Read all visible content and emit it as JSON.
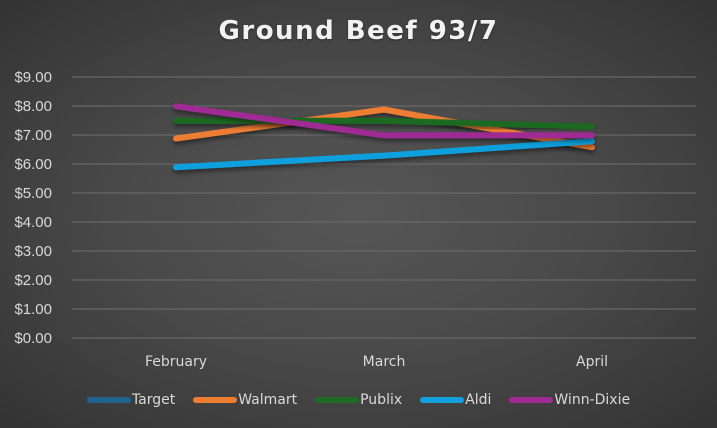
{
  "chart_data": {
    "type": "line",
    "title": "Ground Beef 93/7",
    "xlabel": "",
    "ylabel": "",
    "categories": [
      "February",
      "March",
      "April"
    ],
    "ylim": [
      0,
      9
    ],
    "yticks": [
      "$0.00",
      "$1.00",
      "$2.00",
      "$3.00",
      "$4.00",
      "$5.00",
      "$6.00",
      "$7.00",
      "$8.00",
      "$9.00"
    ],
    "grid": true,
    "legend_position": "bottom",
    "series": [
      {
        "name": "Target",
        "color": "#1f6391",
        "values": [
          7.49,
          7.49,
          7.49
        ]
      },
      {
        "name": "Walmart",
        "color": "#ed7d31",
        "values": [
          6.88,
          7.88,
          6.58
        ]
      },
      {
        "name": "Publix",
        "color": "#1e6b24",
        "values": [
          7.49,
          7.49,
          7.29
        ]
      },
      {
        "name": "Aldi",
        "color": "#11a0dc",
        "values": [
          5.89,
          6.29,
          6.79
        ]
      },
      {
        "name": "Winn-Dixie",
        "color": "#a02b93",
        "values": [
          7.99,
          6.99,
          6.99
        ]
      }
    ]
  }
}
